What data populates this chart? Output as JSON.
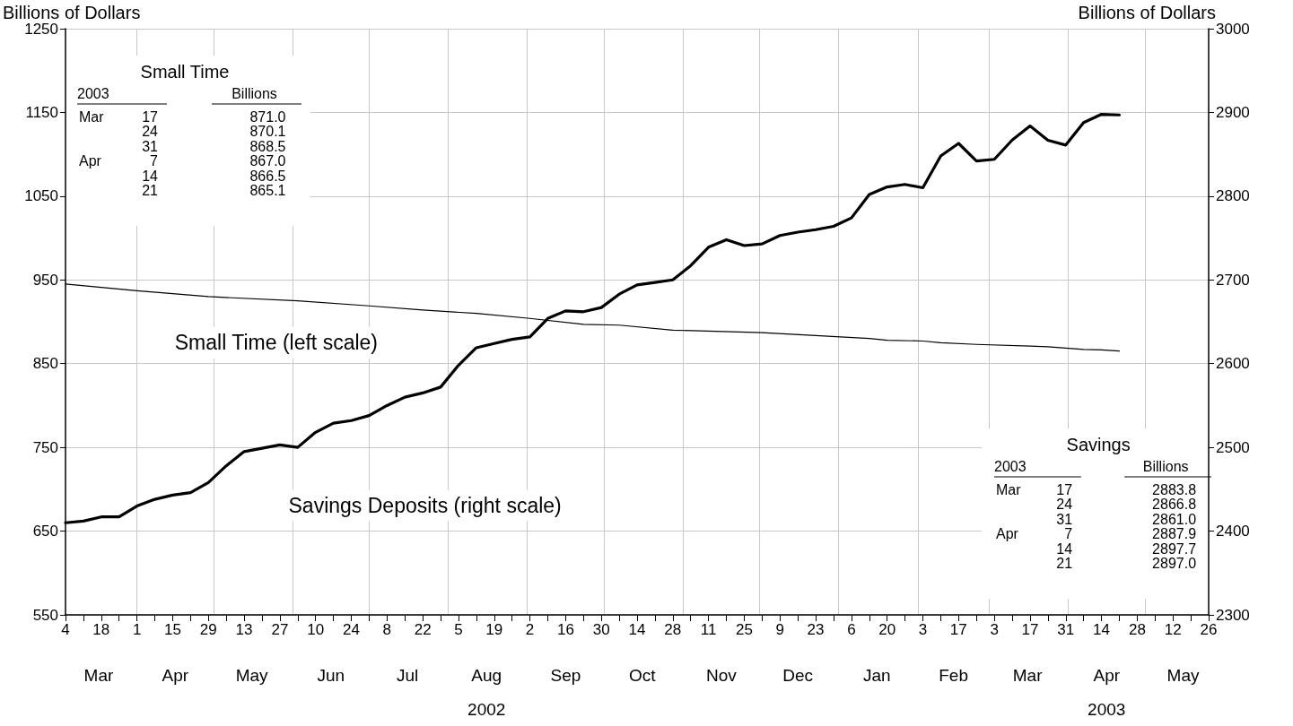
{
  "chart_data": {
    "type": "line",
    "ylabel": "Billions of Dollars",
    "y2label": "Billions of Dollars",
    "x": [
      "2002-03-04",
      "2002-03-11",
      "2002-03-18",
      "2002-03-25",
      "2002-04-01",
      "2002-04-08",
      "2002-04-15",
      "2002-04-22",
      "2002-04-29",
      "2002-05-06",
      "2002-05-13",
      "2002-05-20",
      "2002-05-27",
      "2002-06-03",
      "2002-06-10",
      "2002-06-17",
      "2002-06-24",
      "2002-07-01",
      "2002-07-08",
      "2002-07-15",
      "2002-07-22",
      "2002-07-29",
      "2002-08-05",
      "2002-08-12",
      "2002-08-19",
      "2002-08-26",
      "2002-09-02",
      "2002-09-09",
      "2002-09-16",
      "2002-09-23",
      "2002-09-30",
      "2002-10-07",
      "2002-10-14",
      "2002-10-21",
      "2002-10-28",
      "2002-11-04",
      "2002-11-11",
      "2002-11-18",
      "2002-11-25",
      "2002-12-02",
      "2002-12-09",
      "2002-12-16",
      "2002-12-23",
      "2002-12-30",
      "2003-01-06",
      "2003-01-13",
      "2003-01-20",
      "2003-01-27",
      "2003-02-03",
      "2003-02-10",
      "2003-02-17",
      "2003-02-24",
      "2003-03-03",
      "2003-03-10",
      "2003-03-17",
      "2003-03-24",
      "2003-03-31",
      "2003-04-07",
      "2003-04-14",
      "2003-04-21"
    ],
    "series": [
      {
        "name": "Small Time (left scale)",
        "color": "#000000",
        "x": [
          "2002-03-04",
          "2002-04-01",
          "2002-04-29",
          "2002-06-03",
          "2002-07-01",
          "2002-07-22",
          "2002-08-12",
          "2002-09-02",
          "2002-09-23",
          "2002-10-07",
          "2002-10-28",
          "2002-12-02",
          "2003-01-13",
          "2003-01-20",
          "2003-02-03",
          "2003-02-10",
          "2003-02-24",
          "2003-03-17",
          "2003-03-24",
          "2003-03-31",
          "2003-04-07",
          "2003-04-14",
          "2003-04-21"
        ],
        "values": [
          945,
          937,
          930,
          925,
          919,
          914,
          910,
          904,
          897,
          896,
          890,
          887,
          880,
          878,
          877,
          875,
          873,
          871.0,
          870.1,
          868.5,
          867.0,
          866.5,
          865.1
        ]
      },
      {
        "name": "Savings Deposits (right scale)",
        "color": "#000000",
        "axis": "y2",
        "values": [
          2410,
          2412,
          2417,
          2417,
          2430,
          2438,
          2443,
          2446,
          2458,
          2478,
          2495,
          2499,
          2503,
          2500,
          2518,
          2529,
          2532,
          2538,
          2550,
          2560,
          2565,
          2572,
          2598,
          2619,
          2624,
          2629,
          2632,
          2654,
          2663,
          2662,
          2667,
          2683,
          2694,
          2697,
          2700,
          2717,
          2739,
          2748,
          2741,
          2743,
          2753,
          2757,
          2760,
          2764,
          2774,
          2802,
          2811,
          2814,
          2810,
          2848,
          2863,
          2842,
          2844,
          2867,
          2883.8,
          2866.8,
          2861.0,
          2887.9,
          2897.7,
          2897.0
        ]
      }
    ],
    "xlim": [
      "2002-03-04",
      "2003-05-26"
    ],
    "xticks": [
      {
        "value": "2002-03-04",
        "label": "4"
      },
      {
        "value": "2002-03-11",
        "label": null
      },
      {
        "value": "2002-03-18",
        "label": "18"
      },
      {
        "value": "2002-03-25",
        "label": null
      },
      {
        "value": "2002-04-01",
        "label": "1"
      },
      {
        "value": "2002-04-08",
        "label": null
      },
      {
        "value": "2002-04-15",
        "label": "15"
      },
      {
        "value": "2002-04-22",
        "label": null
      },
      {
        "value": "2002-04-29",
        "label": "29"
      },
      {
        "value": "2002-05-06",
        "label": null
      },
      {
        "value": "2002-05-13",
        "label": "13"
      },
      {
        "value": "2002-05-20",
        "label": null
      },
      {
        "value": "2002-05-27",
        "label": "27"
      },
      {
        "value": "2002-06-03",
        "label": null
      },
      {
        "value": "2002-06-10",
        "label": "10"
      },
      {
        "value": "2002-06-17",
        "label": null
      },
      {
        "value": "2002-06-24",
        "label": "24"
      },
      {
        "value": "2002-07-01",
        "label": null
      },
      {
        "value": "2002-07-08",
        "label": "8"
      },
      {
        "value": "2002-07-15",
        "label": null
      },
      {
        "value": "2002-07-22",
        "label": "22"
      },
      {
        "value": "2002-07-29",
        "label": null
      },
      {
        "value": "2002-08-05",
        "label": "5"
      },
      {
        "value": "2002-08-12",
        "label": null
      },
      {
        "value": "2002-08-19",
        "label": "19"
      },
      {
        "value": "2002-08-26",
        "label": null
      },
      {
        "value": "2002-09-02",
        "label": "2"
      },
      {
        "value": "2002-09-09",
        "label": null
      },
      {
        "value": "2002-09-16",
        "label": "16"
      },
      {
        "value": "2002-09-23",
        "label": null
      },
      {
        "value": "2002-09-30",
        "label": "30"
      },
      {
        "value": "2002-10-07",
        "label": null
      },
      {
        "value": "2002-10-14",
        "label": "14"
      },
      {
        "value": "2002-10-21",
        "label": null
      },
      {
        "value": "2002-10-28",
        "label": "28"
      },
      {
        "value": "2002-11-04",
        "label": null
      },
      {
        "value": "2002-11-11",
        "label": "11"
      },
      {
        "value": "2002-11-18",
        "label": null
      },
      {
        "value": "2002-11-25",
        "label": "25"
      },
      {
        "value": "2002-12-02",
        "label": null
      },
      {
        "value": "2002-12-09",
        "label": "9"
      },
      {
        "value": "2002-12-16",
        "label": null
      },
      {
        "value": "2002-12-23",
        "label": "23"
      },
      {
        "value": "2002-12-30",
        "label": null
      },
      {
        "value": "2003-01-06",
        "label": "6"
      },
      {
        "value": "2003-01-13",
        "label": null
      },
      {
        "value": "2003-01-20",
        "label": "20"
      },
      {
        "value": "2003-01-27",
        "label": null
      },
      {
        "value": "2003-02-03",
        "label": "3"
      },
      {
        "value": "2003-02-10",
        "label": null
      },
      {
        "value": "2003-02-17",
        "label": "17"
      },
      {
        "value": "2003-02-24",
        "label": null
      },
      {
        "value": "2003-03-03",
        "label": "3"
      },
      {
        "value": "2003-03-10",
        "label": null
      },
      {
        "value": "2003-03-17",
        "label": "17"
      },
      {
        "value": "2003-03-24",
        "label": null
      },
      {
        "value": "2003-03-31",
        "label": "31"
      },
      {
        "value": "2003-04-07",
        "label": null
      },
      {
        "value": "2003-04-14",
        "label": "14"
      },
      {
        "value": "2003-04-21",
        "label": null
      },
      {
        "value": "2003-04-28",
        "label": "28"
      },
      {
        "value": "2003-05-05",
        "label": null
      },
      {
        "value": "2003-05-12",
        "label": "12"
      },
      {
        "value": "2003-05-19",
        "label": null
      },
      {
        "value": "2003-05-26",
        "label": "26"
      }
    ],
    "x2lim": [
      "2002-03-04",
      "2003-05-26"
    ],
    "x2ticks": [
      {
        "value": "2002-03-17",
        "label": "Mar"
      },
      {
        "value": "2002-04-01",
        "label": null
      },
      {
        "value": "2002-04-16",
        "label": "Apr"
      },
      {
        "value": "2002-05-01",
        "label": null
      },
      {
        "value": "2002-05-16",
        "label": "May"
      },
      {
        "value": "2002-06-01",
        "label": null
      },
      {
        "value": "2002-06-16",
        "label": "Jun"
      },
      {
        "value": "2002-07-01",
        "label": null
      },
      {
        "value": "2002-07-16",
        "label": "Jul"
      },
      {
        "value": "2002-08-01",
        "label": null
      },
      {
        "value": "2002-08-16",
        "label": "Aug\n2002"
      },
      {
        "value": "2002-09-01",
        "label": null
      },
      {
        "value": "2002-09-16",
        "label": "Sep"
      },
      {
        "value": "2002-10-01",
        "label": null
      },
      {
        "value": "2002-10-16",
        "label": "Oct"
      },
      {
        "value": "2002-11-01",
        "label": null
      },
      {
        "value": "2002-11-16",
        "label": "Nov"
      },
      {
        "value": "2002-12-01",
        "label": null
      },
      {
        "value": "2002-12-16",
        "label": "Dec"
      },
      {
        "value": "2003-01-01",
        "label": null
      },
      {
        "value": "2003-01-16",
        "label": "Jan"
      },
      {
        "value": "2003-02-01",
        "label": null
      },
      {
        "value": "2003-02-15",
        "label": "Feb"
      },
      {
        "value": "2003-03-01",
        "label": null
      },
      {
        "value": "2003-03-16",
        "label": "Mar"
      },
      {
        "value": "2003-04-01",
        "label": null
      },
      {
        "value": "2003-04-16",
        "label": "Apr\n2003"
      },
      {
        "value": "2003-05-01",
        "label": null
      },
      {
        "value": "2003-05-16",
        "label": "May"
      }
    ],
    "ylim": [
      550,
      1250
    ],
    "yticks": [
      550,
      650,
      750,
      850,
      950,
      1050,
      1150,
      1250
    ],
    "y2lim": [
      2300,
      3000
    ],
    "y2ticks": [
      2300,
      2400,
      2500,
      2600,
      2700,
      2800,
      2900,
      3000
    ],
    "grid": true,
    "annotations": [
      "Small Time",
      "2003",
      "Billions",
      "Mar 17 871.0",
      "24 870.1",
      "31 868.5",
      "Apr 7 867.0",
      "14 866.5",
      "21 865.1",
      "Savings",
      "2003",
      "Billions",
      "Mar 17 2883.8",
      "24 2866.8",
      "31 2861.0",
      "Apr 7 2887.9",
      "14 2897.7",
      "21 2897.0"
    ]
  }
}
